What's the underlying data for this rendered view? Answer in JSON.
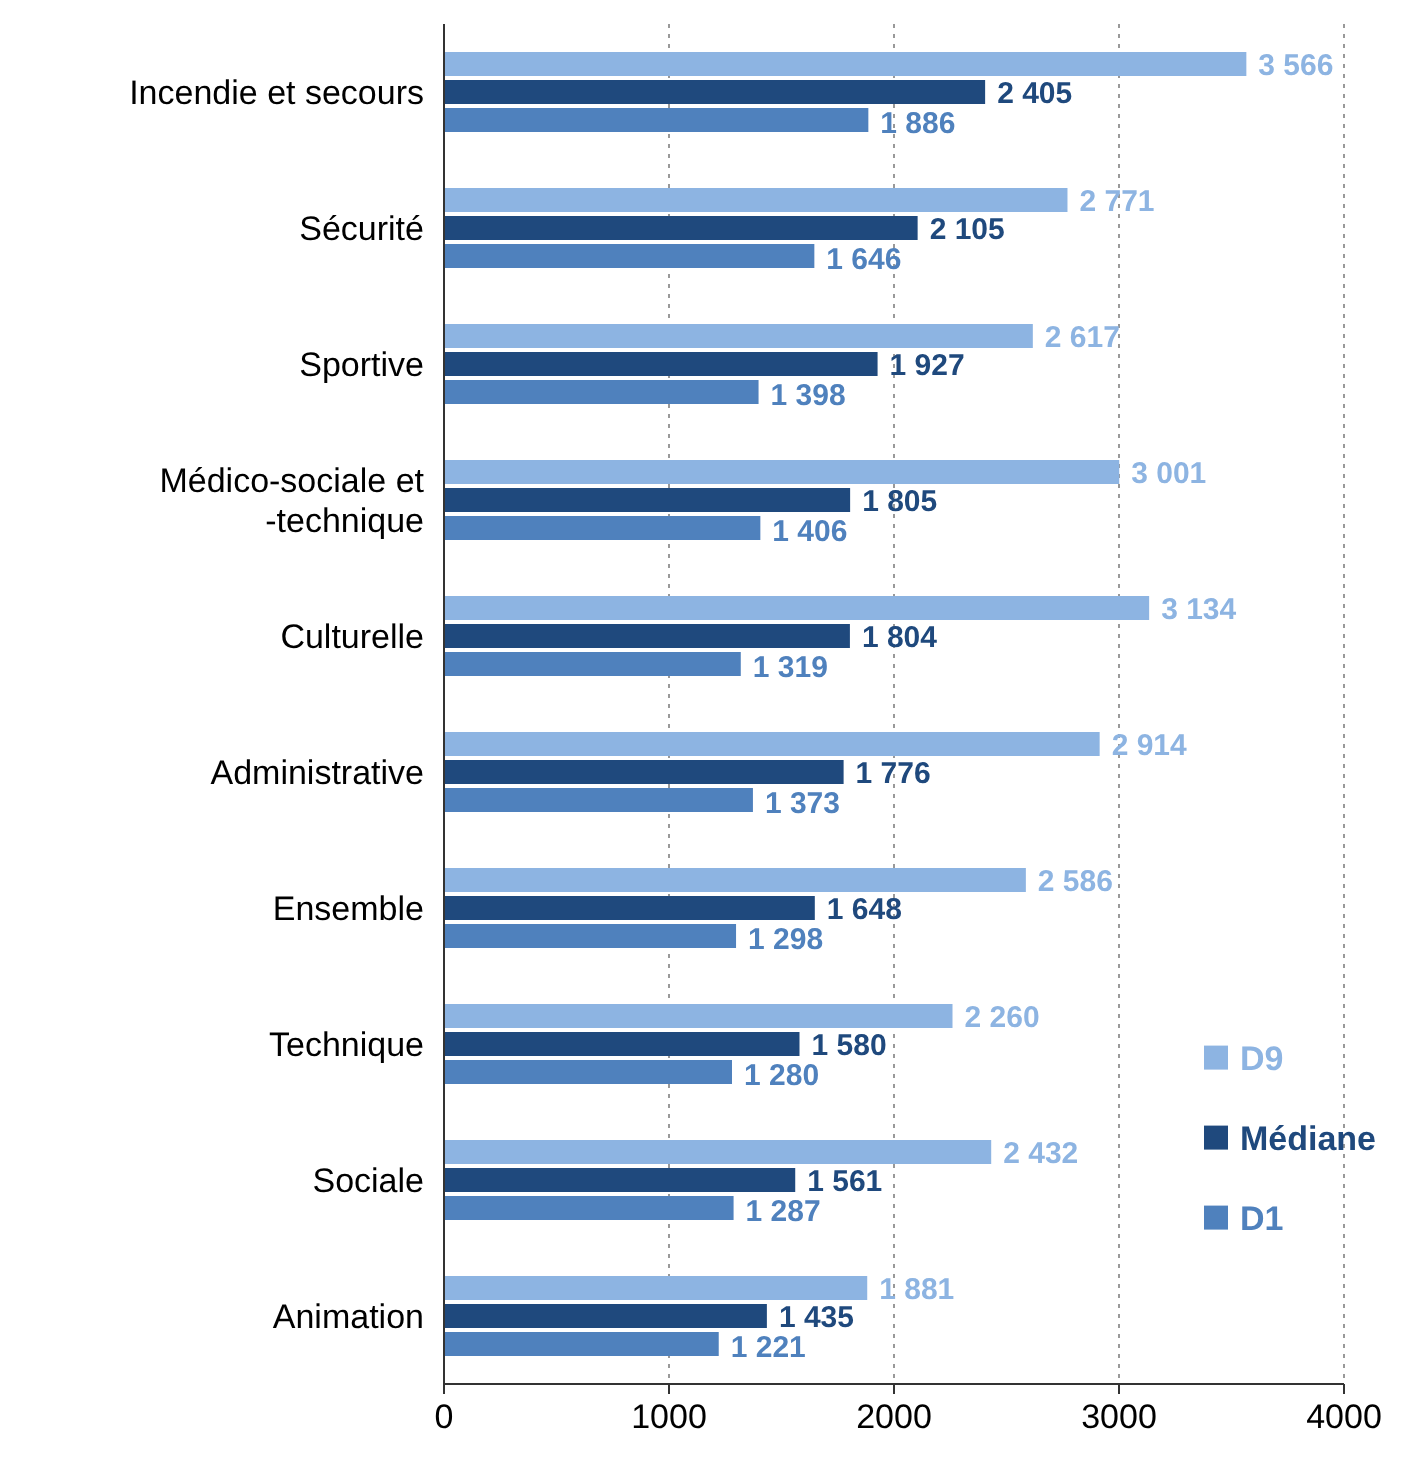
{
  "chart_data": {
    "type": "bar",
    "orientation": "horizontal",
    "categories": [
      "Incendie et secours",
      "Sécurité",
      "Sportive",
      "Médico-sociale et -technique",
      "Culturelle",
      "Administrative",
      "Ensemble",
      "Technique",
      "Sociale",
      "Animation"
    ],
    "series": [
      {
        "name": "D9",
        "color": "#8db4e2",
        "values": [
          3566,
          2771,
          2617,
          3001,
          3134,
          2914,
          2586,
          2260,
          2432,
          1881
        ],
        "value_labels": [
          "3 566",
          "2 771",
          "2 617",
          "3 001",
          "3 134",
          "2 914",
          "2 586",
          "2 260",
          "2 432",
          "1 881"
        ]
      },
      {
        "name": "Médiane",
        "color": "#1f497d",
        "values": [
          2405,
          2105,
          1927,
          1805,
          1804,
          1776,
          1648,
          1580,
          1561,
          1435
        ],
        "value_labels": [
          "2 405",
          "2 105",
          "1 927",
          "1 805",
          "1 804",
          "1 776",
          "1 648",
          "1 580",
          "1 561",
          "1 435"
        ]
      },
      {
        "name": "D1",
        "color": "#4f81bd",
        "values": [
          1886,
          1646,
          1398,
          1406,
          1319,
          1373,
          1298,
          1280,
          1287,
          1221
        ],
        "value_labels": [
          "1 886",
          "1 646",
          "1 398",
          "1 406",
          "1 319",
          "1 373",
          "1 298",
          "1 280",
          "1 287",
          "1 221"
        ]
      }
    ],
    "xlim": [
      0,
      4000
    ],
    "xticks": [
      0,
      1000,
      2000,
      3000,
      4000
    ],
    "grid": "x",
    "legend": "right"
  }
}
